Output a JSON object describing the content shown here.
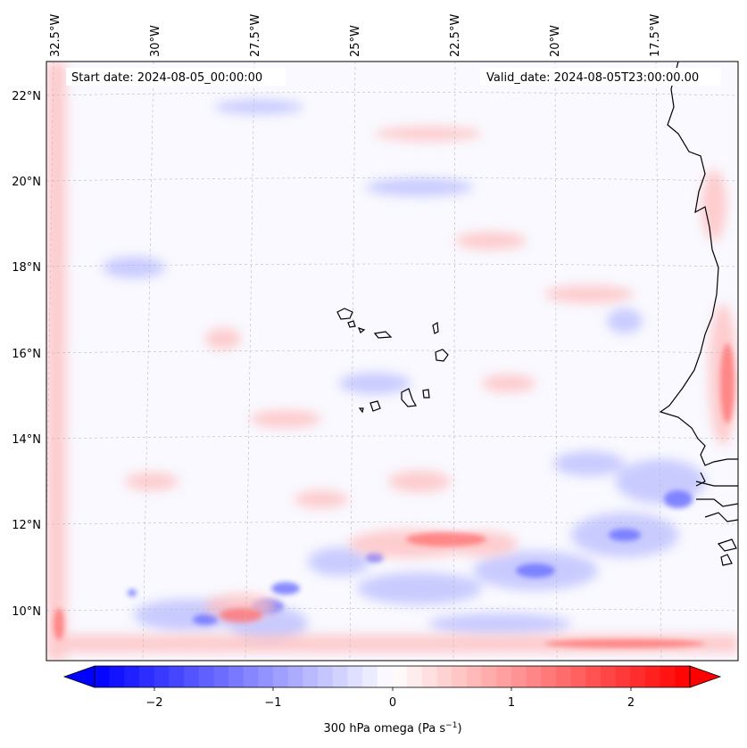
{
  "map": {
    "start_date": "Start date: 2024-08-05_00:00:00",
    "valid_date": "Valid_date: 2024-08-05T23:00:00.00",
    "lon_ticks": [
      "32.5°W",
      "30°W",
      "27.5°W",
      "25°W",
      "22.5°W",
      "20°W",
      "17.5°W"
    ],
    "lat_ticks": [
      "22°N",
      "20°N",
      "18°N",
      "16°N",
      "14°N",
      "12°N",
      "10°N"
    ],
    "extent": {
      "lon_min": -33.0,
      "lon_max": -15.4,
      "lat_min": 8.8,
      "lat_max": 22.8
    },
    "gridlines": true,
    "features": [
      "coastline",
      "Cape Verde islands",
      "West African coast"
    ]
  },
  "colorbar": {
    "label": "300 hPa omega (Pa s",
    "label_sup": "−1",
    "label_end": ")",
    "ticks": [
      "−2",
      "−1",
      "0",
      "1",
      "2"
    ],
    "tick_values": [
      -2,
      -1,
      0,
      1,
      2
    ],
    "range": [
      -2.5,
      2.5
    ],
    "extend": "both",
    "colormap": "bwr",
    "low_color": "#0000ff",
    "mid_color": "#ffffff",
    "high_color": "#ff0000"
  }
}
